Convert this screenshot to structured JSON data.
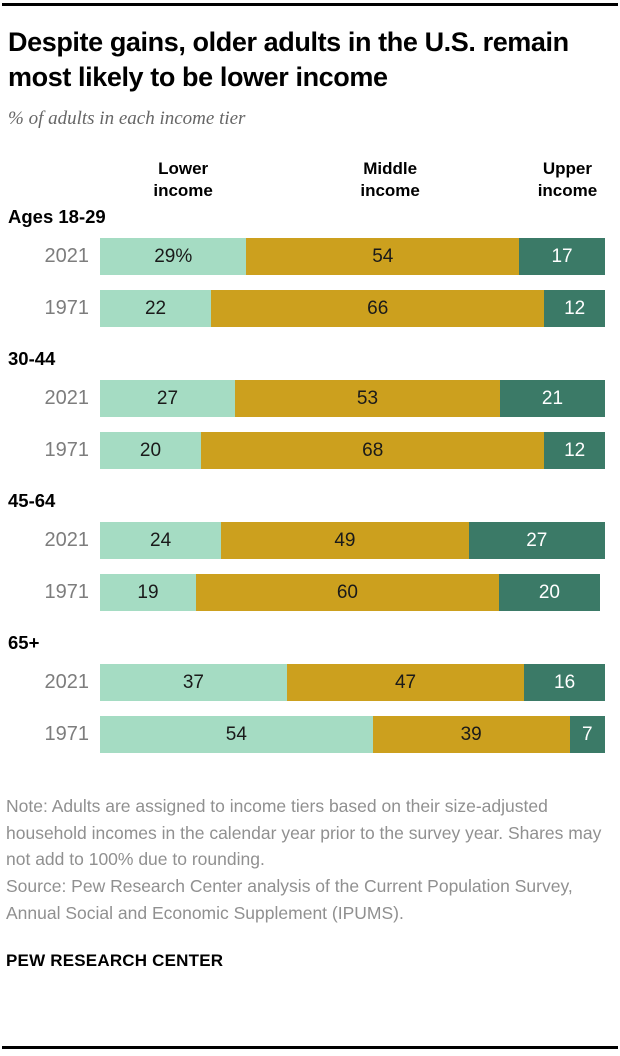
{
  "header": {
    "title": "Despite gains, older adults in the U.S. remain most likely to be lower income",
    "subtitle": "% of adults in each income tier"
  },
  "columns": [
    "Lower\nincome",
    "Middle\nincome",
    "Upper\nincome"
  ],
  "colors": {
    "lower_income": "#A5DCC3",
    "middle_income": "#CCA01E",
    "upper_income": "#3B7A67",
    "value_text_on_light": "#1a1a1a",
    "value_text_on_dark": "#ffffff",
    "year_label": "#7d7d7d",
    "note_text": "#909090",
    "rule": "#000000"
  },
  "chart_data": {
    "type": "bar",
    "stacked": true,
    "orientation": "horizontal",
    "unit": "%",
    "xlim": [
      0,
      100
    ],
    "series_labels": [
      "Lower income",
      "Middle income",
      "Upper income"
    ],
    "series_colors": [
      "#A5DCC3",
      "#CCA01E",
      "#3B7A67"
    ],
    "value_text_colors": [
      "#1a1a1a",
      "#1a1a1a",
      "#ffffff"
    ],
    "groups": [
      {
        "label": "Ages 18-29",
        "rows": [
          {
            "year": "2021",
            "values": [
              29,
              54,
              17
            ],
            "labels": [
              "29%",
              "54",
              "17"
            ]
          },
          {
            "year": "1971",
            "values": [
              22,
              66,
              12
            ],
            "labels": [
              "22",
              "66",
              "12"
            ]
          }
        ]
      },
      {
        "label": "30-44",
        "rows": [
          {
            "year": "2021",
            "values": [
              27,
              53,
              21
            ],
            "labels": [
              "27",
              "53",
              "21"
            ]
          },
          {
            "year": "1971",
            "values": [
              20,
              68,
              12
            ],
            "labels": [
              "20",
              "68",
              "12"
            ]
          }
        ]
      },
      {
        "label": "45-64",
        "rows": [
          {
            "year": "2021",
            "values": [
              24,
              49,
              27
            ],
            "labels": [
              "24",
              "49",
              "27"
            ]
          },
          {
            "year": "1971",
            "values": [
              19,
              60,
              20
            ],
            "labels": [
              "19",
              "60",
              "20"
            ]
          }
        ]
      },
      {
        "label": "65+",
        "rows": [
          {
            "year": "2021",
            "values": [
              37,
              47,
              16
            ],
            "labels": [
              "37",
              "47",
              "16"
            ]
          },
          {
            "year": "1971",
            "values": [
              54,
              39,
              7
            ],
            "labels": [
              "54",
              "39",
              "7"
            ]
          }
        ]
      }
    ]
  },
  "notes": {
    "note": "Note: Adults are assigned to income tiers based on their size-adjusted household incomes in the calendar year prior to the survey year. Shares may not add to 100% due to rounding.",
    "source": "Source: Pew Research Center analysis of the Current Population Survey, Annual Social and Economic Supplement (IPUMS)."
  },
  "footer": {
    "brand": "PEW RESEARCH CENTER"
  }
}
